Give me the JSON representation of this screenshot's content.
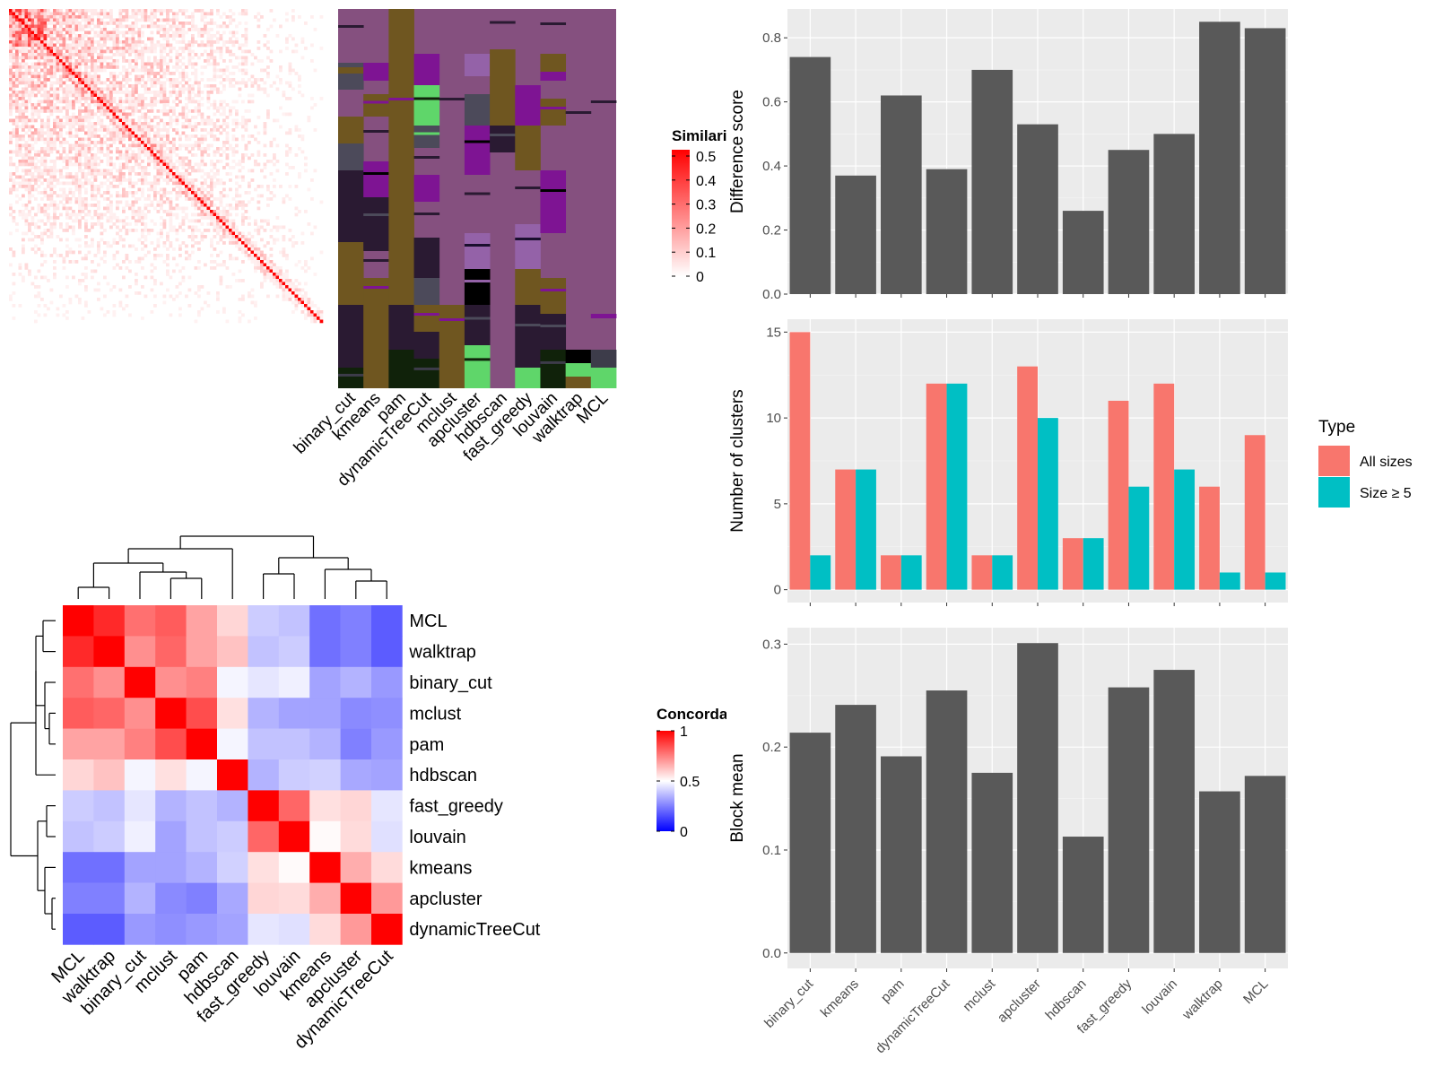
{
  "method_order": [
    "binary_cut",
    "kmeans",
    "pam",
    "dynamicTreeCut",
    "mclust",
    "apcluster",
    "hdbscan",
    "fast_greedy",
    "louvain",
    "walktrap",
    "MCL"
  ],
  "heatmap_order": [
    "MCL",
    "walktrap",
    "binary_cut",
    "mclust",
    "pam",
    "hdbscan",
    "fast_greedy",
    "louvain",
    "kmeans",
    "apcluster",
    "dynamicTreeCut"
  ],
  "similarity_legend": {
    "title": "Similarity",
    "ticks": [
      "0.5",
      "0.4",
      "0.3",
      "0.2",
      "0.1",
      "0"
    ],
    "color_high": "#ff0000",
    "color_low": "#ffffff"
  },
  "concordance_legend": {
    "title": "Concordance",
    "ticks": [
      "1",
      "0.5",
      "0"
    ],
    "color_high": "#ff0000",
    "color_mid": "#ffffff",
    "color_low": "#0000ff"
  },
  "colors": {
    "panel_bg": "#ebebeb",
    "bar_fill": "#595959",
    "all_sizes": "#f8766d",
    "size_ge5": "#00bfc4",
    "grid_major": "#ffffff"
  },
  "chart_data": [
    {
      "type": "heatmap",
      "title": "Similarity",
      "description_text": "",
      "colorbar": {
        "min": 0,
        "max": 0.5
      }
    },
    {
      "type": "heatmap",
      "title": "",
      "categories": [
        "binary_cut",
        "kmeans",
        "pam",
        "dynamicTreeCut",
        "mclust",
        "apcluster",
        "hdbscan",
        "fast_greedy",
        "louvain",
        "walktrap",
        "MCL"
      ]
    },
    {
      "type": "heatmap",
      "title": "Concordance",
      "rows": [
        "MCL",
        "walktrap",
        "binary_cut",
        "mclust",
        "pam",
        "hdbscan",
        "fast_greedy",
        "louvain",
        "kmeans",
        "apcluster",
        "dynamicTreeCut"
      ],
      "cols": [
        "MCL",
        "walktrap",
        "binary_cut",
        "mclust",
        "pam",
        "hdbscan",
        "fast_greedy",
        "louvain",
        "kmeans",
        "apcluster",
        "dynamicTreeCut"
      ],
      "values": [
        [
          1.0,
          0.92,
          0.78,
          0.82,
          0.68,
          0.58,
          0.4,
          0.38,
          0.22,
          0.25,
          0.18
        ],
        [
          0.92,
          1.0,
          0.72,
          0.8,
          0.68,
          0.62,
          0.38,
          0.4,
          0.22,
          0.25,
          0.18
        ],
        [
          0.78,
          0.72,
          1.0,
          0.72,
          0.75,
          0.48,
          0.45,
          0.47,
          0.32,
          0.35,
          0.3
        ],
        [
          0.82,
          0.8,
          0.72,
          1.0,
          0.85,
          0.56,
          0.35,
          0.32,
          0.32,
          0.27,
          0.28
        ],
        [
          0.68,
          0.68,
          0.75,
          0.85,
          1.0,
          0.48,
          0.38,
          0.38,
          0.35,
          0.25,
          0.3
        ],
        [
          0.58,
          0.62,
          0.48,
          0.56,
          0.48,
          1.0,
          0.35,
          0.4,
          0.41,
          0.33,
          0.32
        ],
        [
          0.4,
          0.38,
          0.45,
          0.35,
          0.38,
          0.35,
          1.0,
          0.8,
          0.56,
          0.58,
          0.45
        ],
        [
          0.38,
          0.4,
          0.47,
          0.32,
          0.38,
          0.4,
          0.8,
          1.0,
          0.51,
          0.57,
          0.44
        ],
        [
          0.22,
          0.22,
          0.32,
          0.32,
          0.35,
          0.41,
          0.56,
          0.51,
          1.0,
          0.66,
          0.57
        ],
        [
          0.25,
          0.25,
          0.35,
          0.27,
          0.25,
          0.33,
          0.58,
          0.57,
          0.66,
          1.0,
          0.7
        ],
        [
          0.18,
          0.18,
          0.3,
          0.28,
          0.3,
          0.32,
          0.45,
          0.44,
          0.57,
          0.7,
          1.0
        ]
      ],
      "range": [
        0,
        1
      ]
    },
    {
      "type": "bar",
      "categories": [
        "binary_cut",
        "kmeans",
        "pam",
        "dynamicTreeCut",
        "mclust",
        "apcluster",
        "hdbscan",
        "fast_greedy",
        "louvain",
        "walktrap",
        "MCL"
      ],
      "values": [
        0.74,
        0.37,
        0.62,
        0.39,
        0.7,
        0.53,
        0.26,
        0.45,
        0.5,
        0.85,
        0.83
      ],
      "ylabel": "Difference score",
      "yticks": [
        "0.0",
        "0.2",
        "0.4",
        "0.6",
        "0.8"
      ],
      "ylim": [
        0,
        0.89
      ]
    },
    {
      "type": "bar",
      "categories": [
        "binary_cut",
        "kmeans",
        "pam",
        "dynamicTreeCut",
        "mclust",
        "apcluster",
        "hdbscan",
        "fast_greedy",
        "louvain",
        "walktrap",
        "MCL"
      ],
      "series": [
        {
          "name": "All sizes",
          "values": [
            15,
            7,
            2,
            12,
            2,
            13,
            3,
            11,
            12,
            6,
            9
          ]
        },
        {
          "name": "Size ≥ 5",
          "values": [
            2,
            7,
            2,
            12,
            2,
            10,
            3,
            6,
            7,
            1,
            1
          ]
        }
      ],
      "ylabel": "Number of clusters",
      "yticks": [
        "0",
        "5",
        "10",
        "15"
      ],
      "ylim": [
        -0.75,
        15.75
      ],
      "legend": {
        "title": "Type",
        "placement": "right"
      }
    },
    {
      "type": "bar",
      "categories": [
        "binary_cut",
        "kmeans",
        "pam",
        "dynamicTreeCut",
        "mclust",
        "apcluster",
        "hdbscan",
        "fast_greedy",
        "louvain",
        "walktrap",
        "MCL"
      ],
      "values": [
        0.214,
        0.241,
        0.191,
        0.255,
        0.175,
        0.301,
        0.113,
        0.258,
        0.275,
        0.157,
        0.172
      ],
      "ylabel": "Block mean",
      "yticks": [
        "0.0",
        "0.1",
        "0.2",
        "0.3"
      ],
      "ylim": [
        -0.015,
        0.316
      ]
    }
  ]
}
